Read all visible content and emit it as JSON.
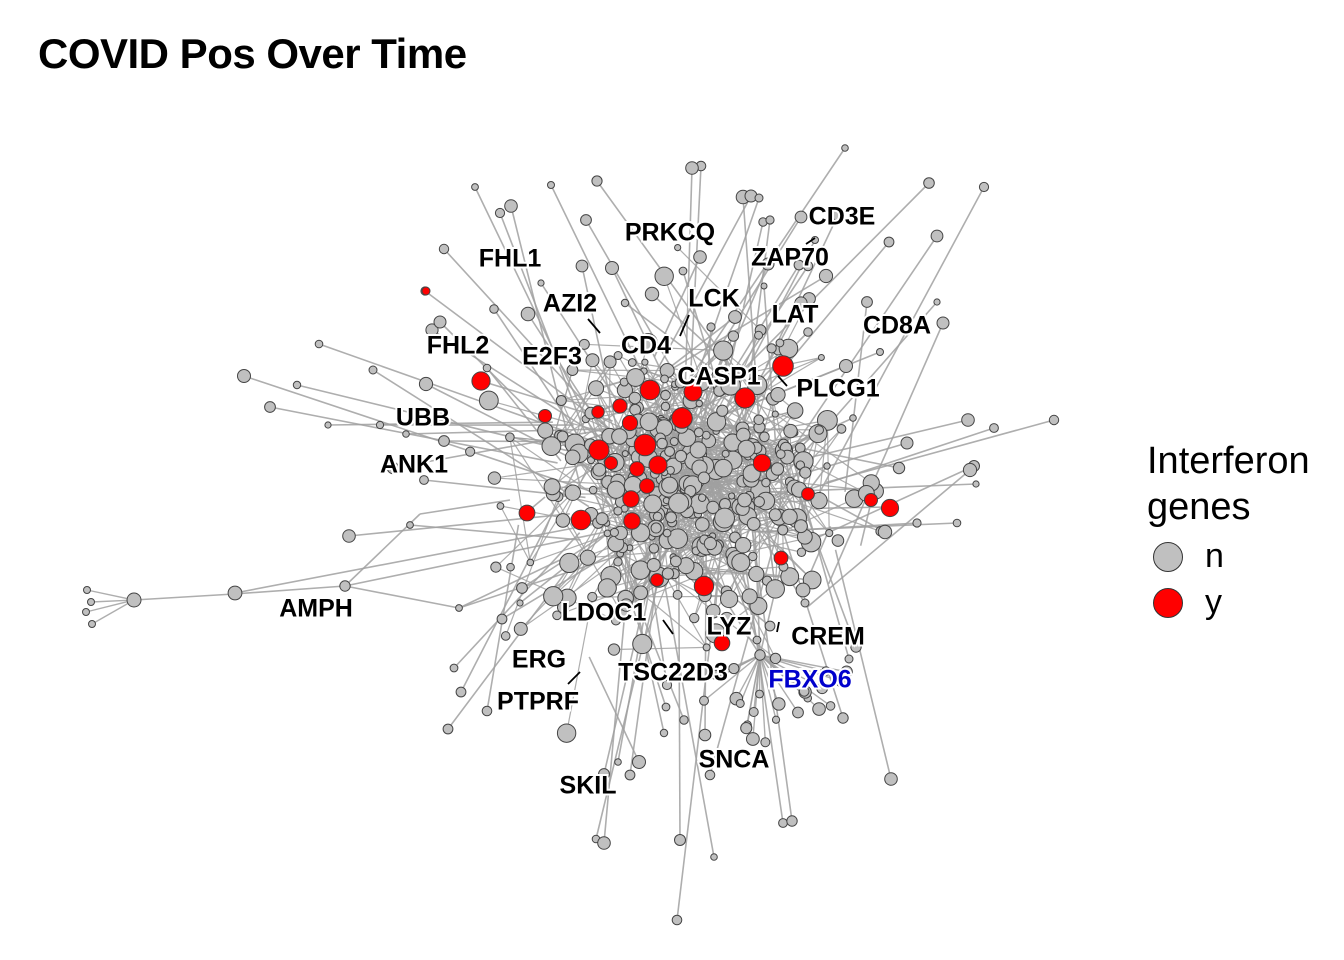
{
  "title": "COVID Pos Over Time",
  "legend": {
    "title_line1": "Interferon",
    "title_line2": "genes",
    "items": [
      {
        "label": "n",
        "color": "#c0c0c0"
      },
      {
        "label": "y",
        "color": "#ff0000"
      }
    ]
  },
  "colors": {
    "edge": "#a0a0a0",
    "node_n": "#c0c0c0",
    "node_y": "#ff0000",
    "node_stroke": "#444444",
    "label_default": "#000000",
    "label_highlight": "#0000cc"
  },
  "gene_labels": [
    {
      "text": "CD3E",
      "highlight": false
    },
    {
      "text": "PRKCQ",
      "highlight": false
    },
    {
      "text": "ZAP70",
      "highlight": false
    },
    {
      "text": "FHL1",
      "highlight": false
    },
    {
      "text": "AZI2",
      "highlight": false
    },
    {
      "text": "LCK",
      "highlight": false
    },
    {
      "text": "LAT",
      "highlight": false
    },
    {
      "text": "CD8A",
      "highlight": false
    },
    {
      "text": "FHL2",
      "highlight": false
    },
    {
      "text": "E2F3",
      "highlight": false
    },
    {
      "text": "CD4",
      "highlight": false
    },
    {
      "text": "CASP1",
      "highlight": false
    },
    {
      "text": "PLCG1",
      "highlight": false
    },
    {
      "text": "UBB",
      "highlight": false
    },
    {
      "text": "ANK1",
      "highlight": false
    },
    {
      "text": "AMPH",
      "highlight": false
    },
    {
      "text": "LDOC1",
      "highlight": false
    },
    {
      "text": "LYZ",
      "highlight": false
    },
    {
      "text": "CREM",
      "highlight": false
    },
    {
      "text": "ERG",
      "highlight": false
    },
    {
      "text": "TSC22D3",
      "highlight": false
    },
    {
      "text": "FBXO6",
      "highlight": true
    },
    {
      "text": "PTPRF",
      "highlight": false
    },
    {
      "text": "SNCA",
      "highlight": false
    },
    {
      "text": "SKIL",
      "highlight": false
    }
  ]
}
